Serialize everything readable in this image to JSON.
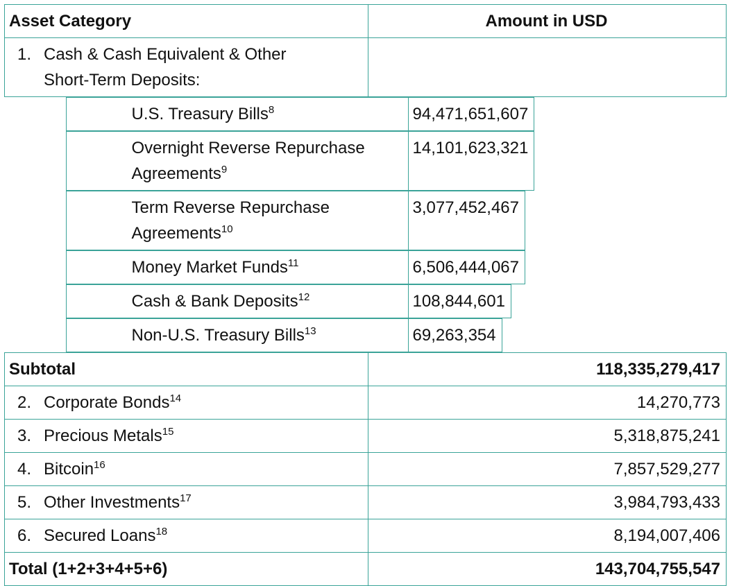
{
  "table": {
    "header": [
      "Asset Category",
      "Amount in USD"
    ],
    "rows": [
      {
        "style": "item",
        "number": "1.",
        "label": "Cash & Cash Equivalent & Other Short-Term Deposits:"
      },
      {
        "style": "sub",
        "label": "U.S. Treasury Bills",
        "note": "8",
        "amount": "94,471,651,607"
      },
      {
        "style": "sub",
        "label": "Overnight Reverse Repurchase Agreements",
        "note": "9",
        "amount": "14,101,623,321"
      },
      {
        "style": "sub",
        "label": "Term Reverse Repurchase Agreements",
        "note": "10",
        "amount": "3,077,452,467"
      },
      {
        "style": "sub",
        "label": "Money Market Funds",
        "note": "11",
        "amount": "6,506,444,067"
      },
      {
        "style": "sub",
        "label": "Cash & Bank Deposits",
        "note": "12",
        "amount": "108,844,601"
      },
      {
        "style": "sub",
        "label": "Non-U.S. Treasury Bills",
        "note": "13",
        "amount": "69,263,354"
      },
      {
        "style": "bold",
        "label": "Subtotal",
        "amount": "118,335,279,417"
      },
      {
        "style": "item",
        "number": "2.",
        "label": "Corporate Bonds",
        "note": "14",
        "amount": "14,270,773"
      },
      {
        "style": "item",
        "number": "3.",
        "label": "Precious Metals",
        "note": "15",
        "amount": "5,318,875,241"
      },
      {
        "style": "item",
        "number": "4.",
        "label": "Bitcoin",
        "note": "16",
        "amount": "7,857,529,277"
      },
      {
        "style": "item",
        "number": "5.",
        "label": "Other Investments",
        "note": "17",
        "amount": "3,984,793,433"
      },
      {
        "style": "item",
        "number": "6.",
        "label": "Secured Loans",
        "note": "18",
        "amount": "8,194,007,406"
      },
      {
        "style": "bold",
        "label": "Total (1+2+3+4+5+6)",
        "amount": "143,704,755,547"
      }
    ]
  }
}
